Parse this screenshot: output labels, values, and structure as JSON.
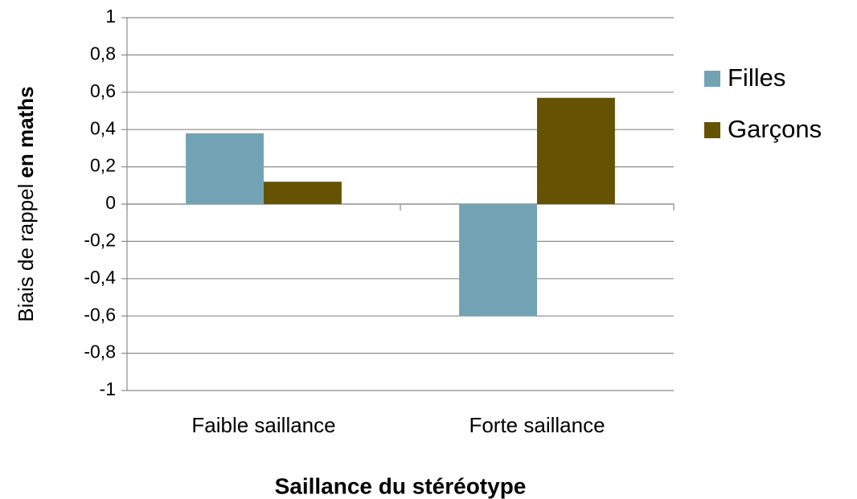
{
  "chart_data": {
    "type": "bar",
    "x_label": "Saillance du stéréotype",
    "y_label": [
      "Biais de rappel",
      "en maths"
    ],
    "categories": [
      "Faible saillance",
      "Forte saillance"
    ],
    "series": [
      {
        "name": "Filles",
        "color": "#71a3b4",
        "values": [
          0.38,
          -0.6
        ]
      },
      {
        "name": "Garçons",
        "color": "#665203",
        "values": [
          0.12,
          0.57
        ]
      }
    ],
    "ylim": [
      -1,
      1
    ],
    "yticks": [
      -1,
      {
        "value": -0.8,
        "label": "-0,8"
      },
      {
        "value": -0.6,
        "label": "-0,6"
      },
      {
        "value": -0.4,
        "label": "-0,4"
      },
      {
        "value": -0.2,
        "label": "-0,2"
      },
      0,
      {
        "value": 0.2,
        "label": "0,2"
      },
      {
        "value": 0.4,
        "label": "0,4"
      },
      {
        "value": 0.6,
        "label": "0,6"
      },
      {
        "value": 0.8,
        "label": "0,8"
      },
      1
    ],
    "grid": true,
    "legend": "right"
  }
}
